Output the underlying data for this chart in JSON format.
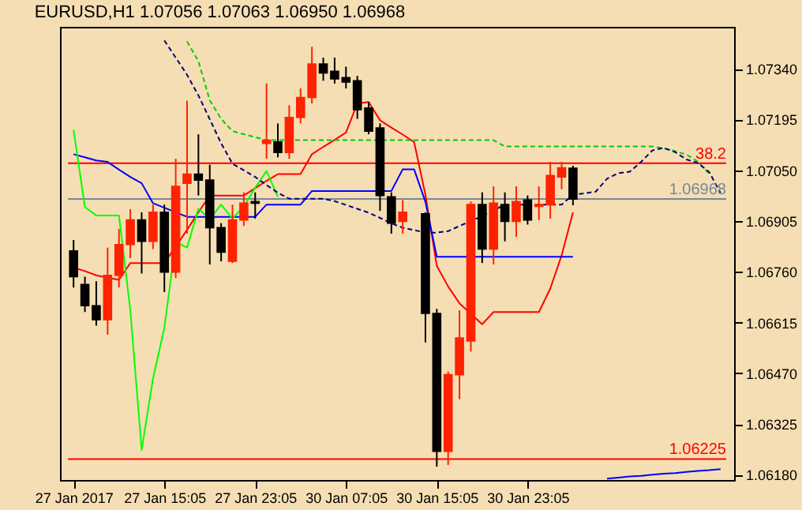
{
  "chart_data": {
    "type": "candlestick",
    "title": "EURUSD,H1 1.07056 1.07063 1.06950 1.06968",
    "categories": [
      "27 Jan 2017",
      null,
      null,
      null,
      null,
      null,
      null,
      null,
      "27 Jan 15:05",
      null,
      null,
      null,
      null,
      null,
      null,
      null,
      "27 Jan 23:05",
      null,
      null,
      null,
      null,
      null,
      null,
      null,
      "30 Jan 07:05",
      null,
      null,
      null,
      null,
      null,
      null,
      null,
      "30 Jan 15:05",
      null,
      null,
      null,
      null,
      null,
      null,
      null,
      "30 Jan 23:05",
      null,
      null,
      null,
      null,
      null,
      null,
      null,
      null,
      null,
      null,
      null,
      null,
      null,
      null,
      null,
      null,
      null
    ],
    "ohlc": [
      [
        1.0682,
        1.06851,
        1.06715,
        1.06746
      ],
      [
        1.06724,
        1.06746,
        1.06645,
        1.06663
      ],
      [
        1.06663,
        1.06733,
        1.06606,
        1.06623
      ],
      [
        1.06623,
        1.06829,
        1.0658,
        1.0675
      ],
      [
        1.0675,
        1.06882,
        1.06715,
        1.06838
      ],
      [
        1.06838,
        1.06939,
        1.06799,
        1.06908
      ],
      [
        1.06908,
        1.0693,
        1.06755,
        1.06847
      ],
      [
        1.06847,
        1.06952,
        1.06825,
        1.0693
      ],
      [
        1.0693,
        1.06952,
        1.06702,
        1.06759
      ],
      [
        1.06759,
        1.07083,
        1.06742,
        1.07004
      ],
      [
        1.07013,
        1.07249,
        1.06869,
        1.07039
      ],
      [
        1.07039,
        1.07153,
        1.06978,
        1.07022
      ],
      [
        1.07022,
        1.07066,
        1.06781,
        1.06886
      ],
      [
        1.06886,
        1.06899,
        1.0679,
        1.06816
      ],
      [
        1.0679,
        1.06952,
        1.06785,
        1.06908
      ],
      [
        1.06908,
        1.06987,
        1.06891,
        1.06956
      ],
      [
        1.06961,
        1.06987,
        1.06912,
        1.06956
      ],
      [
        1.07127,
        1.07298,
        1.07083,
        1.07136
      ],
      [
        1.07131,
        1.07184,
        1.07087,
        1.07101
      ],
      [
        1.07101,
        1.07236,
        1.07083,
        1.07201
      ],
      [
        1.07201,
        1.07284,
        1.07184,
        1.07258
      ],
      [
        1.07258,
        1.07403,
        1.07241,
        1.07354
      ],
      [
        1.07354,
        1.07372,
        1.07306,
        1.07328
      ],
      [
        1.07333,
        1.07372,
        1.07298,
        1.07311
      ],
      [
        1.07315,
        1.07346,
        1.07284,
        1.07302
      ],
      [
        1.07306,
        1.0732,
        1.07197,
        1.07223
      ],
      [
        1.07228,
        1.07245,
        1.07153,
        1.07162
      ],
      [
        1.07171,
        1.07184,
        1.06934,
        1.06978
      ],
      [
        1.06974,
        1.06987,
        1.06869,
        1.06899
      ],
      [
        1.06904,
        1.06965,
        1.06869,
        1.0693
      ],
      null,
      [
        1.06926,
        1.0693,
        1.06558,
        1.06641
      ],
      [
        1.06641,
        1.06654,
        1.06203,
        1.06247
      ],
      [
        1.06247,
        1.06475,
        1.06208,
        1.06466
      ],
      [
        1.06466,
        1.0665,
        1.06396,
        1.06571
      ],
      [
        1.06562,
        1.06961,
        1.06532,
        1.06952
      ],
      [
        1.06952,
        1.06987,
        1.06785,
        1.06825
      ],
      [
        1.06825,
        1.07004,
        1.06781,
        1.06956
      ],
      [
        1.06952,
        1.06987,
        1.06847,
        1.06904
      ],
      [
        1.06904,
        1.07004,
        1.0686,
        1.06961
      ],
      [
        1.06965,
        1.06978,
        1.06895,
        1.06908
      ],
      [
        1.06947,
        1.07004,
        1.06908,
        1.06952
      ],
      [
        1.06952,
        1.07074,
        1.06912,
        1.07035
      ],
      [
        1.07031,
        1.07074,
        1.06996,
        1.07057
      ],
      [
        1.07056,
        1.07063,
        1.0695,
        1.06968
      ],
      null,
      null,
      null,
      null,
      null,
      null,
      null,
      null,
      null,
      null,
      null,
      null,
      null
    ],
    "colors": [
      "#000000",
      "#000000",
      "#000000",
      "#ff2200",
      "#ff2200",
      "#ff2200",
      "#000000",
      "#ff2200",
      "#000000",
      "#ff2200",
      "#ff2200",
      "#000000",
      "#000000",
      "#000000",
      "#ff2200",
      "#ff2200",
      "#000000",
      "#ff2200",
      "#000000",
      "#ff2200",
      "#ff2200",
      "#ff2200",
      "#000000",
      "#000000",
      "#000000",
      "#000000",
      "#000000",
      "#000000",
      "#000000",
      "#ff2200",
      null,
      "#000000",
      "#000000",
      "#ff2200",
      "#ff2200",
      "#ff2200",
      "#000000",
      "#ff2200",
      "#000000",
      "#ff2200",
      "#000000",
      "#ff2200",
      "#ff2200",
      "#ff2200",
      "#000000",
      null,
      null,
      null,
      null,
      null,
      null,
      null,
      null,
      null,
      null,
      null,
      null,
      null
    ],
    "series": [
      {
        "type": "line",
        "color": "#ff0000",
        "line_style": "solid",
        "values": [
          1.06772,
          1.06762,
          1.0675,
          1.06743,
          1.06737,
          1.06785,
          1.06785,
          1.06785,
          1.06785,
          1.06832,
          1.0688,
          1.0693,
          1.06978,
          1.06978,
          1.06978,
          1.06978,
          1.06999,
          1.0702,
          1.07039,
          1.07039,
          1.07039,
          1.07096,
          1.07117,
          1.07137,
          1.07158,
          1.07241,
          1.07245,
          1.07193,
          1.07172,
          1.07152,
          1.07131,
          1.0698,
          1.06777,
          1.06718,
          1.0667,
          1.0664,
          1.0661,
          1.06645,
          1.06645,
          1.06645,
          1.06645,
          1.06645,
          1.06712,
          1.06807,
          1.0693,
          null,
          null,
          null,
          null,
          null,
          null,
          null,
          null,
          null,
          null,
          null,
          null,
          null
        ]
      },
      {
        "type": "line",
        "color": "#0000ff",
        "line_style": "solid",
        "values": [
          1.07096,
          1.07087,
          1.07078,
          1.07074,
          1.07052,
          1.07031,
          1.07013,
          1.06956,
          1.06943,
          1.0693,
          1.06917,
          1.06917,
          1.06917,
          1.06917,
          1.06917,
          1.06917,
          1.06917,
          1.06952,
          1.06952,
          1.06952,
          1.06952,
          1.06991,
          1.06991,
          1.06991,
          1.06991,
          1.06991,
          1.06991,
          1.06991,
          1.06991,
          1.07053,
          1.07053,
          1.0696,
          1.06803,
          1.06803,
          1.06803,
          1.06803,
          1.06803,
          1.06803,
          1.06803,
          1.06803,
          1.06803,
          1.06803,
          1.06803,
          1.06803,
          1.06803,
          null,
          null,
          null,
          null,
          null,
          null,
          null,
          null,
          null,
          null,
          null,
          null,
          null
        ]
      },
      {
        "type": "line",
        "color": "#00ff00",
        "line_style": "solid",
        "values": [
          1.07166,
          1.06945,
          1.06921,
          1.06921,
          1.06921,
          1.0665,
          1.06251,
          1.06455,
          1.066,
          1.06845,
          1.06829,
          1.0694,
          1.06911,
          1.06952,
          1.06912,
          1.06947,
          1.07,
          1.07048,
          1.06974,
          null,
          null,
          null,
          null,
          null,
          null,
          null,
          null,
          null,
          null,
          null,
          null,
          null,
          null,
          null,
          null,
          null,
          null,
          null,
          null,
          null,
          null,
          null,
          null,
          null,
          null,
          null,
          null,
          null,
          null,
          null,
          null,
          null,
          null,
          null,
          null,
          null,
          null,
          null
        ]
      },
      {
        "type": "line",
        "color": "#00cc00",
        "line_style": "dashed",
        "values": [
          null,
          null,
          null,
          null,
          null,
          null,
          null,
          null,
          null,
          null,
          1.07418,
          1.07362,
          1.0725,
          1.07197,
          1.07162,
          1.07153,
          1.07145,
          1.07136,
          1.07136,
          1.07136,
          1.07136,
          1.07136,
          1.07136,
          1.07136,
          1.07136,
          1.07136,
          1.07136,
          1.07136,
          1.07136,
          1.07136,
          1.07136,
          1.07136,
          1.07136,
          1.07136,
          1.07136,
          1.07136,
          1.07136,
          1.07136,
          1.07118,
          1.07118,
          1.07118,
          1.07118,
          1.07118,
          1.07118,
          1.07118,
          1.07118,
          1.07118,
          1.07118,
          1.07118,
          1.07118,
          1.07118,
          1.07118,
          1.07113,
          1.07105,
          1.07095,
          1.07075,
          1.0704,
          null
        ]
      },
      {
        "type": "line",
        "color": "#000080",
        "line_style": "dashed",
        "values": [
          null,
          null,
          null,
          null,
          null,
          null,
          null,
          null,
          1.07421,
          1.07372,
          1.07323,
          1.07264,
          1.07196,
          1.07127,
          1.07069,
          1.0705,
          1.07031,
          1.07008,
          1.06986,
          1.06969,
          1.06969,
          1.06969,
          1.06969,
          1.06962,
          1.06951,
          1.0694,
          1.06929,
          1.06914,
          1.06898,
          1.06886,
          1.06879,
          1.06872,
          1.06872,
          1.06876,
          1.06891,
          1.06905,
          1.06919,
          1.06935,
          1.06952,
          1.06952,
          1.06952,
          1.06952,
          1.06952,
          1.06952,
          1.0698,
          1.06984,
          1.06989,
          1.07026,
          1.07042,
          1.07046,
          1.07074,
          1.07107,
          1.07114,
          1.07102,
          1.07081,
          1.07071,
          1.07045,
          1.06985
        ]
      },
      {
        "type": "line",
        "color": "#0000ff",
        "line_style": "solid",
        "values": [
          null,
          null,
          null,
          null,
          null,
          null,
          null,
          null,
          null,
          null,
          null,
          null,
          null,
          null,
          null,
          null,
          null,
          null,
          null,
          null,
          null,
          null,
          null,
          null,
          null,
          null,
          null,
          null,
          null,
          null,
          null,
          null,
          null,
          null,
          null,
          null,
          null,
          null,
          null,
          null,
          null,
          null,
          null,
          null,
          null,
          null,
          null,
          1.06169,
          1.06172,
          1.06175,
          1.06177,
          1.0618,
          1.06183,
          1.06185,
          1.06188,
          1.06191,
          1.06193,
          1.06196
        ]
      }
    ],
    "annotations": [
      {
        "text": "38.2",
        "y": 1.0707
      }
    ],
    "ref_lines": [
      {
        "axis": "y",
        "value": 1.0707,
        "color": "#ff0000"
      },
      {
        "axis": "y",
        "value": 1.06968,
        "label": "1.06968",
        "color": "#778899"
      },
      {
        "axis": "y",
        "value": 1.06225,
        "label": "1.06225",
        "color": "#ff0000"
      }
    ],
    "ylim": [
      1.06165,
      1.0746
    ],
    "yticks": [
      {
        "value": 1.0618,
        "label": "1.06180"
      },
      {
        "value": 1.06325,
        "label": "1.06325"
      },
      {
        "value": 1.0647,
        "label": "1.06470"
      },
      {
        "value": 1.06615,
        "label": "1.06615"
      },
      {
        "value": 1.0676,
        "label": "1.06760"
      },
      {
        "value": 1.06905,
        "label": "1.06905"
      },
      {
        "value": 1.0705,
        "label": "1.07050"
      },
      {
        "value": 1.07195,
        "label": "1.07195"
      },
      {
        "value": 1.0734,
        "label": "1.07340"
      }
    ]
  }
}
